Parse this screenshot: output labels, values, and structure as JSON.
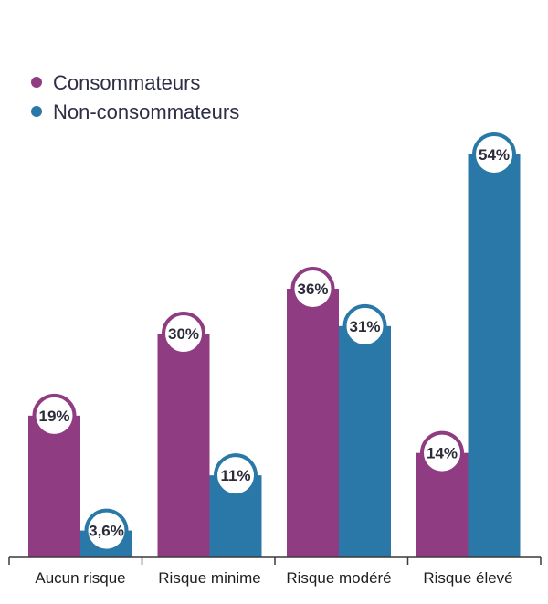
{
  "chart_data": {
    "type": "bar",
    "title": "",
    "xlabel": "",
    "ylabel": "",
    "ylim": [
      0,
      60
    ],
    "categories": [
      "Aucun risque",
      "Risque minime",
      "Risque modéré",
      "Risque élevé"
    ],
    "series": [
      {
        "name": "Consommateurs",
        "color": "#903c83",
        "values": [
          19,
          30,
          36,
          14
        ],
        "labels": [
          "19%",
          "30%",
          "36%",
          "14%"
        ]
      },
      {
        "name": "Non-consommateurs",
        "color": "#2a78a8",
        "values": [
          3.6,
          11,
          31,
          54
        ],
        "labels": [
          "3,6%",
          "11%",
          "31%",
          "54%"
        ]
      }
    ],
    "legend_position": "top-left",
    "grid": false
  }
}
